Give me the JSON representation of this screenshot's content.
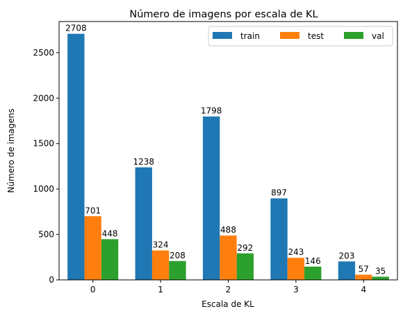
{
  "chart_data": {
    "type": "bar",
    "title": "Número de imagens por escala de KL",
    "xlabel": "Escala de KL",
    "ylabel": "Número de imagens",
    "categories": [
      "0",
      "1",
      "2",
      "3",
      "4"
    ],
    "series": [
      {
        "name": "train",
        "color": "#1f77b4",
        "values": [
          2708,
          1238,
          1798,
          897,
          203
        ]
      },
      {
        "name": "test",
        "color": "#ff7f0e",
        "values": [
          701,
          324,
          488,
          243,
          57
        ]
      },
      {
        "name": "val",
        "color": "#2ca02c",
        "values": [
          448,
          208,
          292,
          146,
          35
        ]
      }
    ],
    "ylim": [
      0,
      2843
    ],
    "yticks": [
      0,
      500,
      1000,
      1500,
      2000,
      2500
    ],
    "grid": false,
    "legend_position": "top-right"
  }
}
